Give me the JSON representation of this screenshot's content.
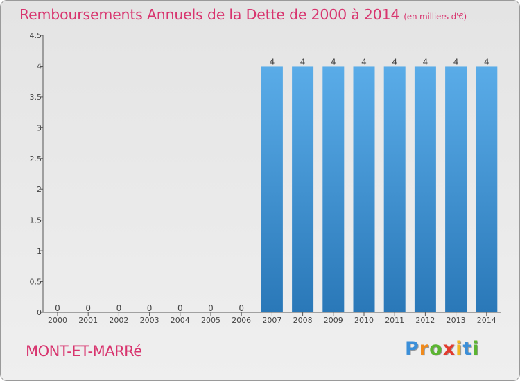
{
  "header": {
    "title": "Remboursements Annuels de la Dette de 2000 à 2014",
    "unit": "(en milliers d'€)"
  },
  "footer": {
    "commune": "MONT-ET-MARRé",
    "logo_letters": [
      {
        "ch": "P",
        "color": "#3b8fd9"
      },
      {
        "ch": "r",
        "color": "#f08a1c"
      },
      {
        "ch": "o",
        "color": "#5bb531"
      },
      {
        "ch": "x",
        "color": "#e23b2e"
      },
      {
        "ch": "i",
        "color": "#f2b71f"
      },
      {
        "ch": "t",
        "color": "#3b8fd9"
      },
      {
        "ch": "i",
        "color": "#5bb531"
      }
    ]
  },
  "chart_data": {
    "type": "bar",
    "categories": [
      "2000",
      "2001",
      "2002",
      "2003",
      "2004",
      "2005",
      "2006",
      "2007",
      "2008",
      "2009",
      "2010",
      "2011",
      "2012",
      "2013",
      "2014"
    ],
    "values": [
      0,
      0,
      0,
      0,
      0,
      0,
      0,
      4,
      4,
      4,
      4,
      4,
      4,
      4,
      4
    ],
    "data_labels": [
      "0",
      "0",
      "0",
      "0",
      "0",
      "0",
      "0",
      "4",
      "4",
      "4",
      "4",
      "4",
      "4",
      "4",
      "4"
    ],
    "ylim": [
      0,
      4.5
    ],
    "y_ticks": [
      0,
      0.5,
      1,
      1.5,
      2,
      2.5,
      3,
      3.5,
      4,
      4.5
    ],
    "y_tick_labels": [
      "0",
      "0.5",
      "1",
      "1.5",
      "2",
      "2.5",
      "3",
      "3.5",
      "4",
      "4.5"
    ],
    "bar_color_top": "#5aace8",
    "bar_color_bottom": "#2a78b8",
    "grid": false
  }
}
